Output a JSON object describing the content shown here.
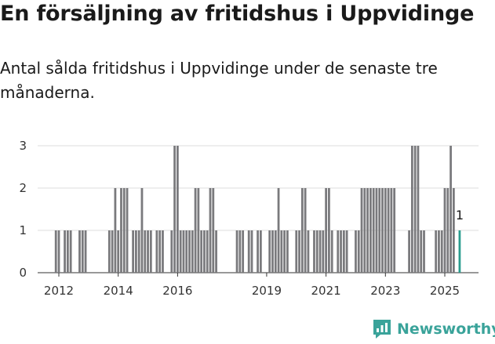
{
  "header": {
    "title": "En försäljning av fritidshus i Uppvidinge",
    "subtitle": "Antal sålda fritidshus i Uppvidinge under de senaste tre månaderna."
  },
  "brand": {
    "name": "Newsworthy",
    "icon": "newsworthy-logo-icon",
    "color": "#3aa39a"
  },
  "chart_data": {
    "type": "bar",
    "title": "",
    "xlabel": "",
    "ylabel": "",
    "ylim": [
      0,
      3
    ],
    "y_ticks": [
      "0",
      "1",
      "2",
      "3"
    ],
    "x_range": [
      2011.8,
      2025.5
    ],
    "x_ticks": [
      {
        "label": "2012",
        "value": 2012.0
      },
      {
        "label": "2014",
        "value": 2014.0
      },
      {
        "label": "2016",
        "value": 2016.0
      },
      {
        "label": "2019",
        "value": 2019.0
      },
      {
        "label": "2021",
        "value": 2021.0
      },
      {
        "label": "2023",
        "value": 2023.0
      },
      {
        "label": "2025",
        "value": 2025.0
      }
    ],
    "grid": true,
    "bar_color": "#7a7a7d",
    "highlight_color": "#2a9d8f",
    "bar_width_months": 1,
    "series": [
      {
        "values": [
          [
            2011.9,
            1
          ],
          [
            2012.0,
            1
          ],
          [
            2012.2,
            1
          ],
          [
            2012.3,
            1
          ],
          [
            2012.4,
            1
          ],
          [
            2012.7,
            1
          ],
          [
            2012.8,
            1
          ],
          [
            2012.9,
            1
          ],
          [
            2013.7,
            1
          ],
          [
            2013.8,
            1
          ],
          [
            2013.9,
            2
          ],
          [
            2014.0,
            1
          ],
          [
            2014.1,
            2
          ],
          [
            2014.2,
            2
          ],
          [
            2014.3,
            2
          ],
          [
            2014.5,
            1
          ],
          [
            2014.6,
            1
          ],
          [
            2014.7,
            1
          ],
          [
            2014.8,
            2
          ],
          [
            2014.9,
            1
          ],
          [
            2015.0,
            1
          ],
          [
            2015.1,
            1
          ],
          [
            2015.3,
            1
          ],
          [
            2015.4,
            1
          ],
          [
            2015.5,
            1
          ],
          [
            2015.8,
            1
          ],
          [
            2015.9,
            3
          ],
          [
            2016.0,
            3
          ],
          [
            2016.1,
            1
          ],
          [
            2016.2,
            1
          ],
          [
            2016.3,
            1
          ],
          [
            2016.4,
            1
          ],
          [
            2016.5,
            1
          ],
          [
            2016.6,
            2
          ],
          [
            2016.7,
            2
          ],
          [
            2016.8,
            1
          ],
          [
            2016.9,
            1
          ],
          [
            2017.0,
            1
          ],
          [
            2017.1,
            2
          ],
          [
            2017.2,
            2
          ],
          [
            2017.3,
            1
          ],
          [
            2018.0,
            1
          ],
          [
            2018.1,
            1
          ],
          [
            2018.2,
            1
          ],
          [
            2018.4,
            1
          ],
          [
            2018.5,
            1
          ],
          [
            2018.7,
            1
          ],
          [
            2018.8,
            1
          ],
          [
            2019.1,
            1
          ],
          [
            2019.2,
            1
          ],
          [
            2019.3,
            1
          ],
          [
            2019.4,
            2
          ],
          [
            2019.5,
            1
          ],
          [
            2019.6,
            1
          ],
          [
            2019.7,
            1
          ],
          [
            2020.0,
            1
          ],
          [
            2020.1,
            1
          ],
          [
            2020.2,
            2
          ],
          [
            2020.3,
            2
          ],
          [
            2020.4,
            1
          ],
          [
            2020.6,
            1
          ],
          [
            2020.7,
            1
          ],
          [
            2020.8,
            1
          ],
          [
            2020.9,
            1
          ],
          [
            2021.0,
            2
          ],
          [
            2021.1,
            2
          ],
          [
            2021.2,
            1
          ],
          [
            2021.4,
            1
          ],
          [
            2021.5,
            1
          ],
          [
            2021.6,
            1
          ],
          [
            2021.7,
            1
          ],
          [
            2022.0,
            1
          ],
          [
            2022.1,
            1
          ],
          [
            2022.2,
            2
          ],
          [
            2022.3,
            2
          ],
          [
            2022.4,
            2
          ],
          [
            2022.5,
            2
          ],
          [
            2022.6,
            2
          ],
          [
            2022.7,
            2
          ],
          [
            2022.8,
            2
          ],
          [
            2022.9,
            2
          ],
          [
            2023.0,
            2
          ],
          [
            2023.1,
            2
          ],
          [
            2023.2,
            2
          ],
          [
            2023.3,
            2
          ],
          [
            2023.8,
            1
          ],
          [
            2023.9,
            3
          ],
          [
            2024.0,
            3
          ],
          [
            2024.1,
            3
          ],
          [
            2024.2,
            1
          ],
          [
            2024.3,
            1
          ],
          [
            2024.7,
            1
          ],
          [
            2024.8,
            1
          ],
          [
            2024.9,
            1
          ],
          [
            2025.0,
            2
          ],
          [
            2025.1,
            2
          ],
          [
            2025.2,
            3
          ],
          [
            2025.3,
            2
          ],
          [
            2025.5,
            1
          ]
        ]
      }
    ],
    "annotations": [
      {
        "x": 2025.5,
        "value": 1,
        "text": "1"
      }
    ]
  }
}
